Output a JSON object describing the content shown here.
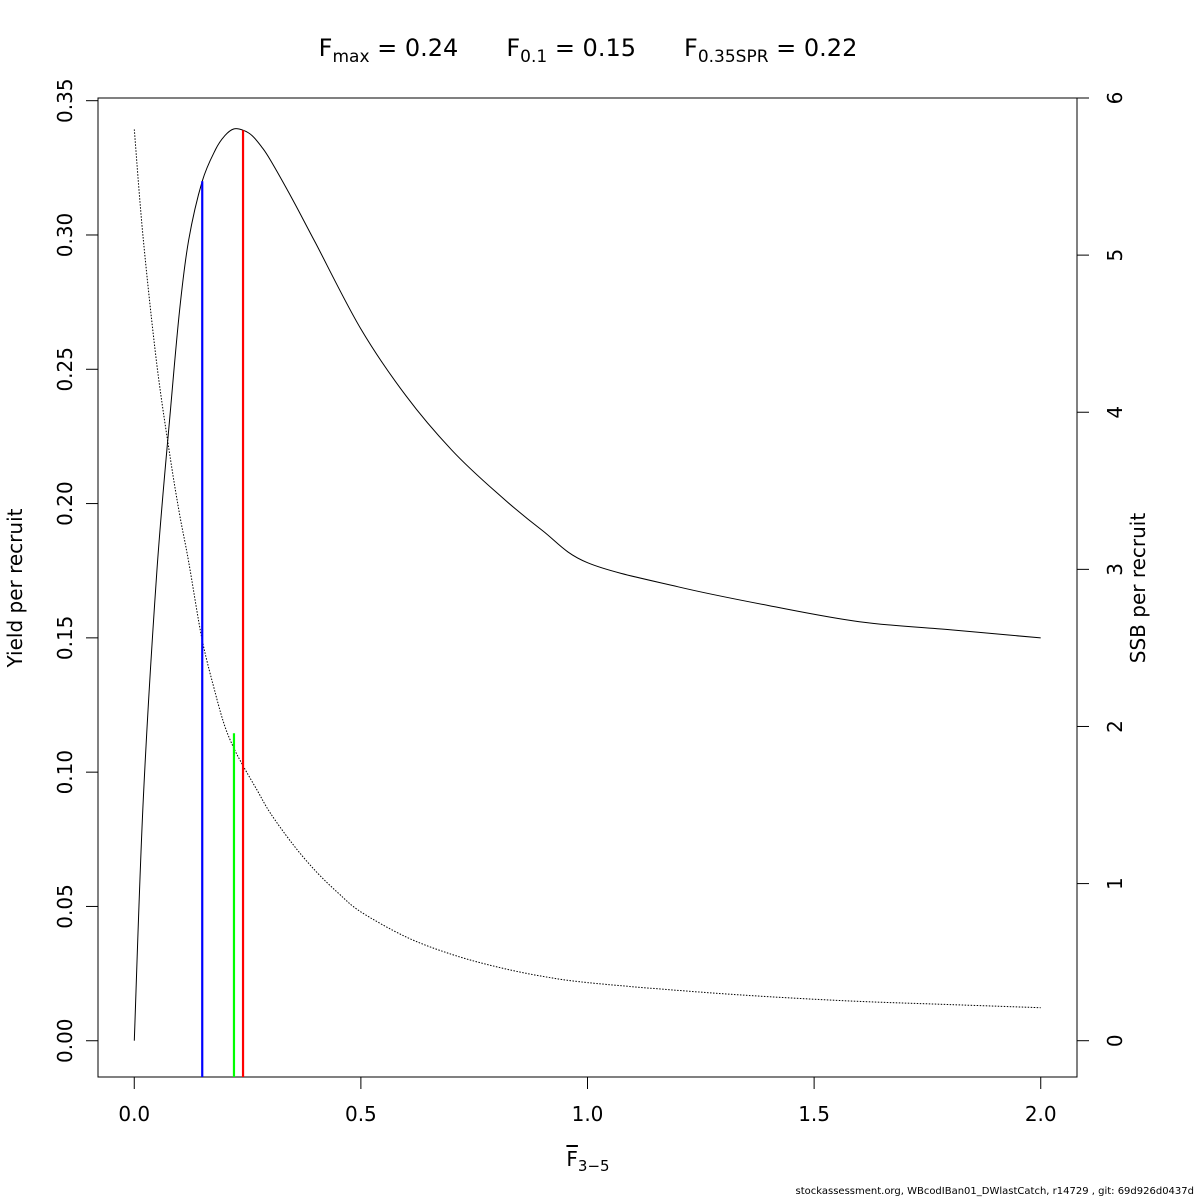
{
  "chart_data": {
    "type": "line",
    "title_parts": [
      {
        "base": "F",
        "sub": "max",
        "text": " = 0.24"
      },
      {
        "base": "F",
        "sub": "0.1",
        "text": " = 0.15"
      },
      {
        "base": "F",
        "sub": "0.35SPR",
        "text": " = 0.22"
      }
    ],
    "xlabel": {
      "base": "F",
      "sub": "3−5",
      "overline": true
    },
    "ylabel": "Yield per recruit",
    "y2label": "SSB per recruit",
    "xlim": [
      -0.08,
      2.08
    ],
    "ylim": [
      -0.0135,
      0.351
    ],
    "y2lim": [
      -0.231,
      6.0
    ],
    "x_ticks": [
      0.0,
      0.5,
      1.0,
      1.5,
      2.0
    ],
    "x_tick_labels": [
      "0.0",
      "0.5",
      "1.0",
      "1.5",
      "2.0"
    ],
    "y_ticks": [
      0.0,
      0.05,
      0.1,
      0.15,
      0.2,
      0.25,
      0.3,
      0.35
    ],
    "y_tick_labels": [
      "0.00",
      "0.05",
      "0.10",
      "0.15",
      "0.20",
      "0.25",
      "0.30",
      "0.35"
    ],
    "y2_ticks": [
      0,
      1,
      2,
      3,
      4,
      5,
      6
    ],
    "y2_tick_labels": [
      "0",
      "1",
      "2",
      "3",
      "4",
      "5",
      "6"
    ],
    "series": [
      {
        "axis": "left",
        "style": "solid",
        "color": "#000000",
        "x": [
          0.0,
          0.02,
          0.05,
          0.08,
          0.1,
          0.12,
          0.15,
          0.18,
          0.2,
          0.22,
          0.24,
          0.26,
          0.28,
          0.3,
          0.35,
          0.4,
          0.5,
          0.6,
          0.7,
          0.8,
          0.9,
          1.0,
          1.2,
          1.4,
          1.6,
          1.8,
          2.0
        ],
        "y": [
          0.0,
          0.09,
          0.175,
          0.235,
          0.272,
          0.298,
          0.32,
          0.332,
          0.337,
          0.3395,
          0.339,
          0.337,
          0.333,
          0.328,
          0.313,
          0.297,
          0.265,
          0.24,
          0.22,
          0.204,
          0.19,
          0.178,
          0.169,
          0.162,
          0.156,
          0.153,
          0.15
        ]
      },
      {
        "axis": "right",
        "style": "dotted",
        "color": "#000000",
        "x": [
          0.0,
          0.02,
          0.05,
          0.08,
          0.1,
          0.12,
          0.15,
          0.18,
          0.2,
          0.22,
          0.24,
          0.27,
          0.3,
          0.35,
          0.4,
          0.45,
          0.5,
          0.6,
          0.7,
          0.8,
          0.9,
          1.0,
          1.2,
          1.4,
          1.6,
          1.8,
          2.0
        ],
        "y": [
          5.8,
          5.1,
          4.3,
          3.7,
          3.35,
          3.05,
          2.55,
          2.2,
          2.0,
          1.86,
          1.75,
          1.6,
          1.45,
          1.25,
          1.08,
          0.94,
          0.82,
          0.66,
          0.55,
          0.47,
          0.41,
          0.37,
          0.32,
          0.28,
          0.25,
          0.23,
          0.21
        ]
      }
    ],
    "reference_lines": [
      {
        "name": "F0.1",
        "x": 0.15,
        "y_top": 0.32,
        "color": "#0000ff"
      },
      {
        "name": "F0.35SPR",
        "x": 0.22,
        "y_top": 0.1145,
        "color": "#00ff00"
      },
      {
        "name": "Fmax",
        "x": 0.24,
        "y_top": 0.339,
        "color": "#ff0000"
      }
    ]
  },
  "footer": "stockassessment.org, WBcodIBan01_DWlastCatch, r14729 , git: 69d926d0437d"
}
